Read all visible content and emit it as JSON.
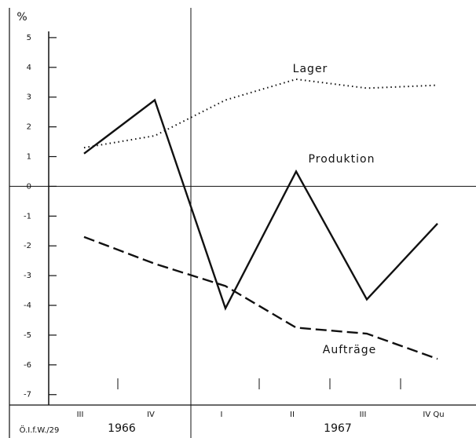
{
  "chart_data": {
    "type": "line",
    "y_unit": "%",
    "categories": [
      "III",
      "IV",
      "I",
      "II",
      "III",
      "IV Qu"
    ],
    "year_labels": [
      "1966",
      "1967"
    ],
    "source": "Ö.I.f.W./29",
    "series": [
      {
        "name": "Lager",
        "color": "#111111",
        "style": "dotted",
        "values": [
          1.3,
          1.7,
          2.9,
          3.6,
          3.3,
          3.4
        ]
      },
      {
        "name": "Produktion",
        "color": "#111111",
        "style": "solid",
        "values": [
          1.1,
          2.9,
          -4.1,
          0.5,
          -3.8,
          -1.25
        ]
      },
      {
        "name": "Aufträge",
        "color": "#111111",
        "style": "dashed",
        "values": [
          -1.7,
          -2.6,
          -3.35,
          -4.75,
          -4.95,
          -5.8
        ]
      }
    ],
    "ylim": [
      -7.35,
      6
    ],
    "yticks": [
      5,
      4,
      3,
      2,
      1,
      0,
      -1,
      -2,
      -3,
      -4,
      -5,
      -6,
      -7
    ]
  }
}
